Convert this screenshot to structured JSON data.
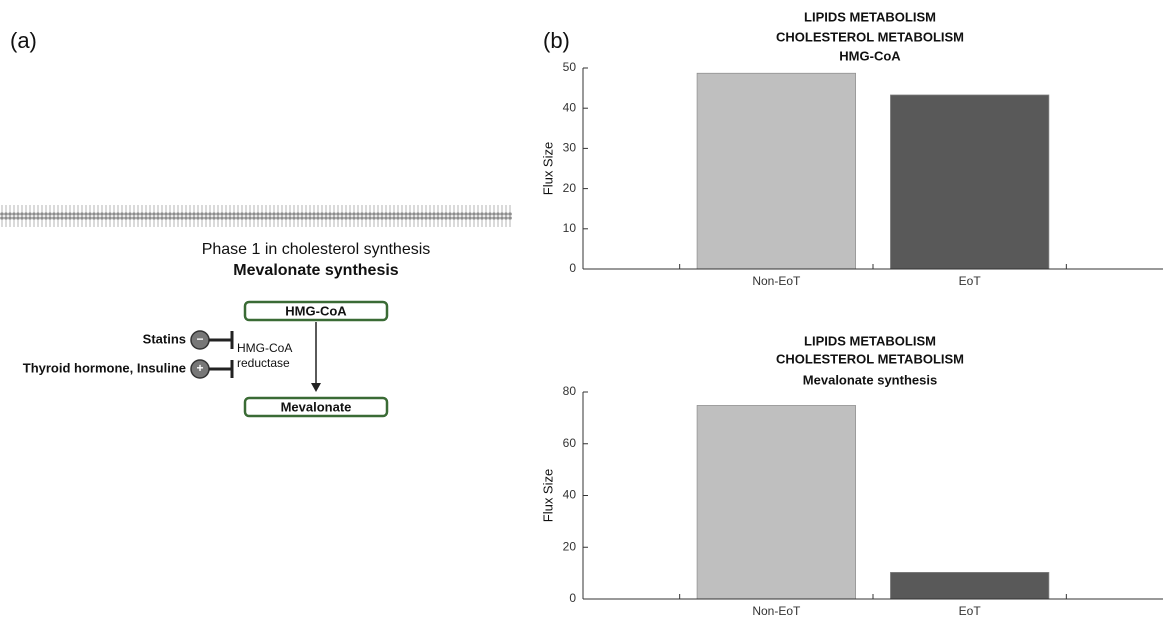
{
  "panel_a": {
    "label": "(a)",
    "phase_title": "Phase 1 in cholesterol synthesis",
    "phase_subtitle": "Mevalonate synthesis",
    "substrate": "HMG-CoA",
    "product": "Mevalonate",
    "enzyme": [
      "HMG-CoA",
      "reductase"
    ],
    "inhibitor": {
      "label": "Statins",
      "sign": "−"
    },
    "activator": {
      "label": "Thyroid hormone, Insuline",
      "sign": "+"
    }
  },
  "panel_b": {
    "label": "(b)"
  },
  "chart_data": [
    {
      "type": "bar",
      "title": [
        "LIPIDS METABOLISM",
        "CHOLESTEROL METABOLISM",
        "HMG-CoA"
      ],
      "y_label": "Flux Size",
      "categories": [
        "Non-EoT",
        "EoT"
      ],
      "values": [
        48.7,
        43.3
      ],
      "colors": [
        "#bfbfbf",
        "#595959"
      ],
      "ylim": [
        0,
        50
      ],
      "yticks": [
        0,
        10,
        20,
        30,
        40,
        50
      ]
    },
    {
      "type": "bar",
      "title": [
        "LIPIDS METABOLISM",
        "CHOLESTEROL METABOLISM",
        "Mevalonate synthesis"
      ],
      "y_label": "Flux Size",
      "categories": [
        "Non-EoT",
        "EoT"
      ],
      "values": [
        74.8,
        10.3
      ],
      "colors": [
        "#bfbfbf",
        "#595959"
      ],
      "ylim": [
        0,
        80
      ],
      "yticks": [
        0,
        20,
        40,
        60,
        80
      ]
    }
  ]
}
